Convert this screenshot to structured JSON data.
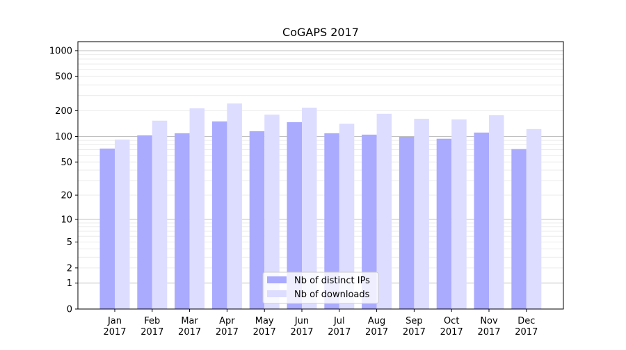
{
  "chart_data": {
    "type": "bar",
    "title": "CoGAPS 2017",
    "xlabel": "",
    "ylabel": "",
    "yscale": "log10(1+y)",
    "ylim": [
      0,
      1300
    ],
    "yticks": [
      0,
      1,
      2,
      5,
      10,
      20,
      50,
      100,
      200,
      500,
      1000
    ],
    "grid": true,
    "legend_position": "lower center",
    "categories": [
      [
        "Jan",
        "2017"
      ],
      [
        "Feb",
        "2017"
      ],
      [
        "Mar",
        "2017"
      ],
      [
        "Apr",
        "2017"
      ],
      [
        "May",
        "2017"
      ],
      [
        "Jun",
        "2017"
      ],
      [
        "Jul",
        "2017"
      ],
      [
        "Aug",
        "2017"
      ],
      [
        "Sep",
        "2017"
      ],
      [
        "Oct",
        "2017"
      ],
      [
        "Nov",
        "2017"
      ],
      [
        "Dec",
        "2017"
      ]
    ],
    "series": [
      {
        "name": "Nb of distinct IPs",
        "color": "#aaaaff",
        "values": [
          72,
          103,
          109,
          150,
          115,
          147,
          109,
          105,
          99,
          94,
          111,
          71
        ]
      },
      {
        "name": "Nb of downloads",
        "color": "#ddddff",
        "values": [
          92,
          153,
          213,
          243,
          180,
          217,
          141,
          184,
          161,
          158,
          177,
          122
        ]
      }
    ]
  }
}
